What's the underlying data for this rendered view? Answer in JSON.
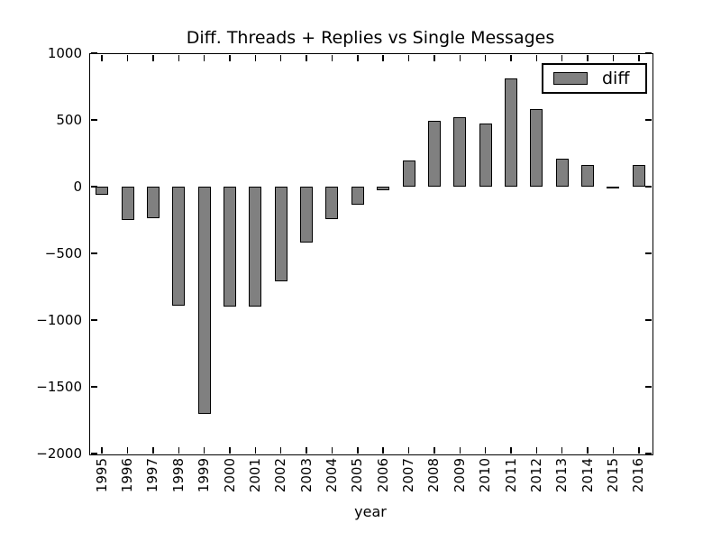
{
  "title": "Diff. Threads + Replies vs Single Messages",
  "xlabel": "year",
  "legend": {
    "label": "diff"
  },
  "colors": {
    "bar_fill": "#808080",
    "bar_edge": "#000000",
    "axis": "#000000",
    "background": "#ffffff"
  },
  "chart_data": {
    "type": "bar",
    "title": "Diff. Threads + Replies vs Single Messages",
    "xlabel": "year",
    "ylabel": "",
    "categories": [
      "1995",
      "1996",
      "1997",
      "1998",
      "1999",
      "2000",
      "2001",
      "2002",
      "2003",
      "2004",
      "2005",
      "2006",
      "2007",
      "2008",
      "2009",
      "2010",
      "2011",
      "2012",
      "2013",
      "2014",
      "2015",
      "2016"
    ],
    "series": [
      {
        "name": "diff",
        "values": [
          -60,
          -250,
          -235,
          -890,
          -1700,
          -900,
          -900,
          -710,
          -420,
          -240,
          -135,
          -30,
          195,
          495,
          520,
          475,
          810,
          580,
          210,
          160,
          -5,
          160
        ]
      }
    ],
    "ylim": [
      -2000,
      1000
    ],
    "yticks": [
      1000,
      500,
      0,
      -500,
      -1000,
      -1500,
      -2000
    ],
    "grid": false,
    "legend_position": "upper right",
    "bar_color": "#808080",
    "bar_edge_color": "#000000"
  }
}
